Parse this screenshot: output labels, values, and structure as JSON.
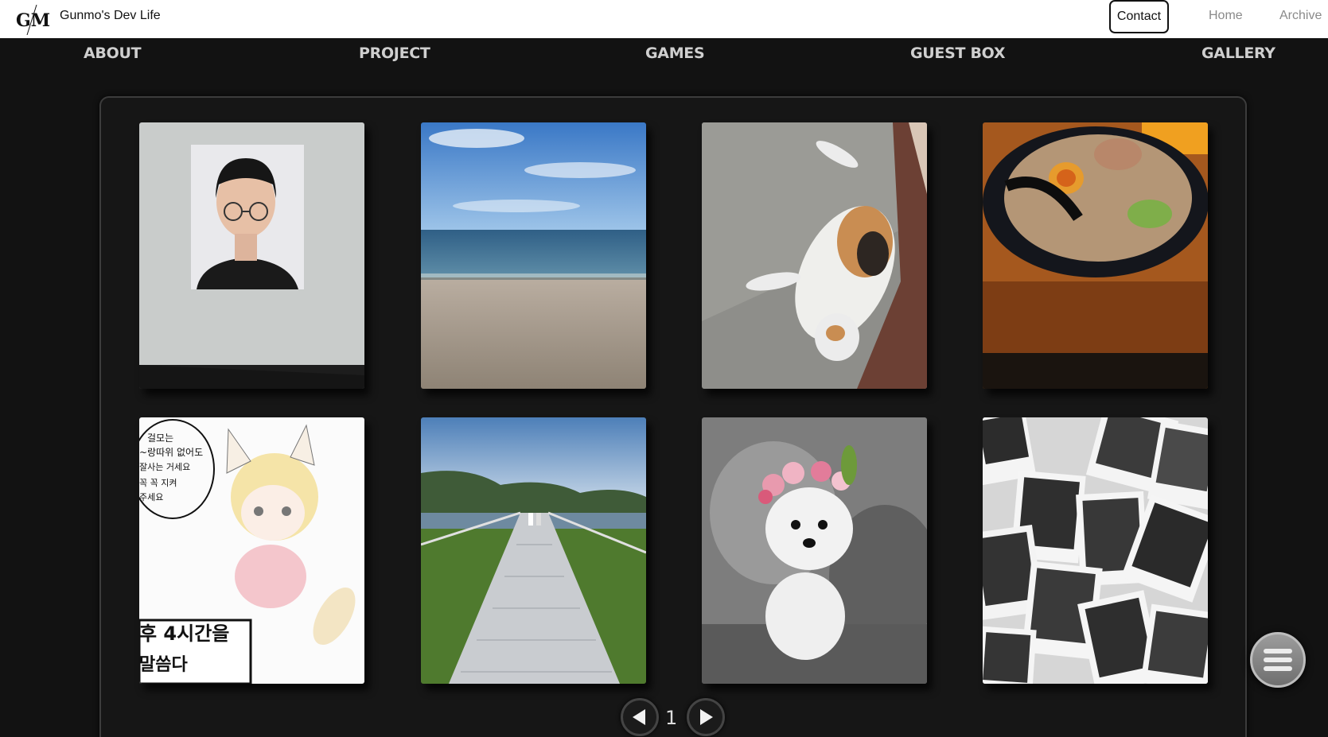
{
  "header": {
    "logo_text": "GM",
    "brand": "Gunmo's Dev Life",
    "contact_label": "Contact",
    "links": [
      "Home",
      "Archive"
    ]
  },
  "nav": {
    "items": [
      "ABOUT",
      "PROJECT",
      "GAMES",
      "GUEST BOX",
      "GALLERY"
    ]
  },
  "gallery": {
    "photos": [
      "portrait-photo",
      "beach-photo",
      "cat-photo",
      "ramen-photo",
      "anime-drawing",
      "bridge-photo",
      "puppy-photo",
      "polaroids-photo"
    ],
    "drawing_text": [
      "걸모는",
      "~랑따위 없어도",
      "잘사는 거세요",
      "꼭 꼭 지켜",
      "주세요",
      "후 4시간을",
      "말씀다"
    ]
  },
  "pagination": {
    "current_page": "1",
    "prev_icon": "triangle-left-icon",
    "next_icon": "triangle-right-icon"
  },
  "fab": {
    "icon": "hamburger-menu-icon"
  }
}
